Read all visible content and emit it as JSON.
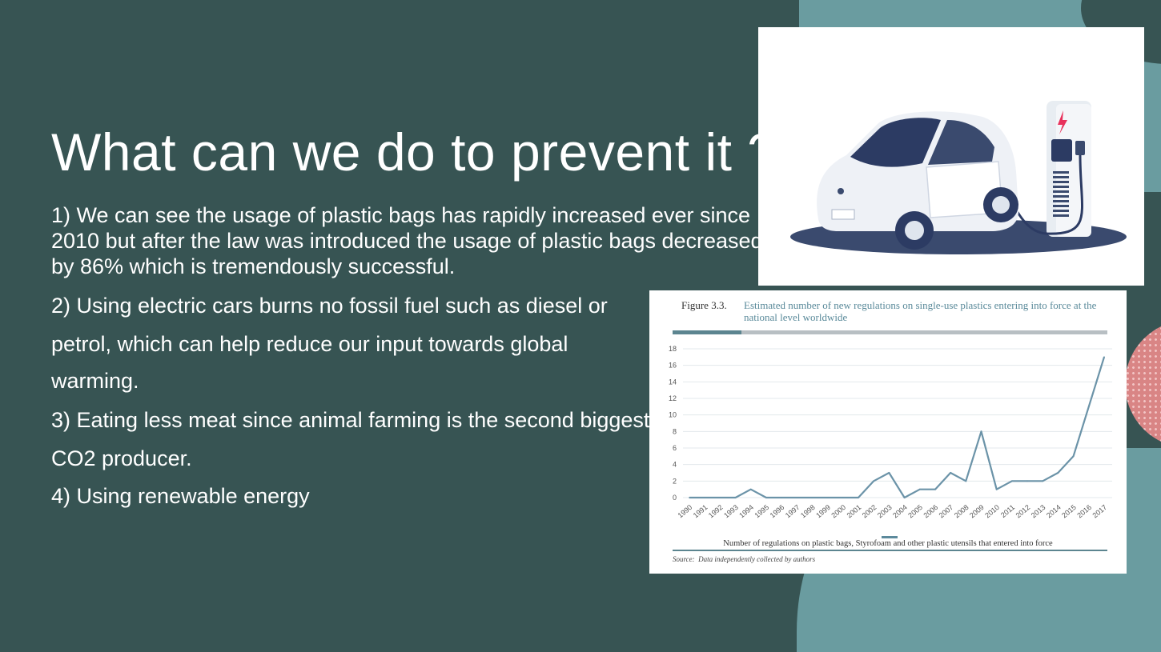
{
  "slide": {
    "title": "What can we do to prevent it ?",
    "points": [
      "1) We can see the usage of plastic bags has rapidly increased ever since 2010 but after the law was introduced the usage of plastic bags decreased by 86% which is tremendously successful.",
      "2) Using electric cars burns no fossil fuel such as diesel or",
      "petrol, which can help reduce our input towards global",
      "warming.",
      "3) Eating less meat since animal farming is the second biggest",
      "CO2 producer.",
      "4) Using renewable energy"
    ]
  },
  "images": {
    "car": "electric-car-charging-illustration"
  },
  "figure": {
    "label": "Figure  3.3.",
    "title": "Estimated number of new regulations on single-use plastics entering into force at the national level worldwide",
    "legend": "Number of regulations on plastic bags, Styrofoam and other plastic utensils that entered into force",
    "source_label": "Source:",
    "source_text": "Data independently collected by authors"
  },
  "chart_data": {
    "type": "line",
    "x": [
      "1990",
      "1991",
      "1992",
      "1993",
      "1994",
      "1995",
      "1996",
      "1997",
      "1998",
      "1999",
      "2000",
      "2001",
      "2002",
      "2003",
      "2004",
      "2005",
      "2006",
      "2007",
      "2008",
      "2009",
      "2010",
      "2011",
      "2012",
      "2013",
      "2014",
      "2015",
      "2016",
      "2017"
    ],
    "series": [
      {
        "name": "Number of regulations on plastic bags, Styrofoam and other plastic utensils that entered into force",
        "values": [
          0,
          0,
          0,
          0,
          1,
          0,
          0,
          0,
          0,
          0,
          0,
          0,
          2,
          3,
          0,
          1,
          1,
          3,
          2,
          8,
          1,
          2,
          2,
          2,
          3,
          5,
          11,
          17
        ]
      }
    ],
    "yticks": [
      0,
      2,
      4,
      6,
      8,
      10,
      12,
      14,
      16,
      18
    ],
    "ylim": [
      0,
      18
    ],
    "grid": true,
    "color": "#6b93a8"
  }
}
